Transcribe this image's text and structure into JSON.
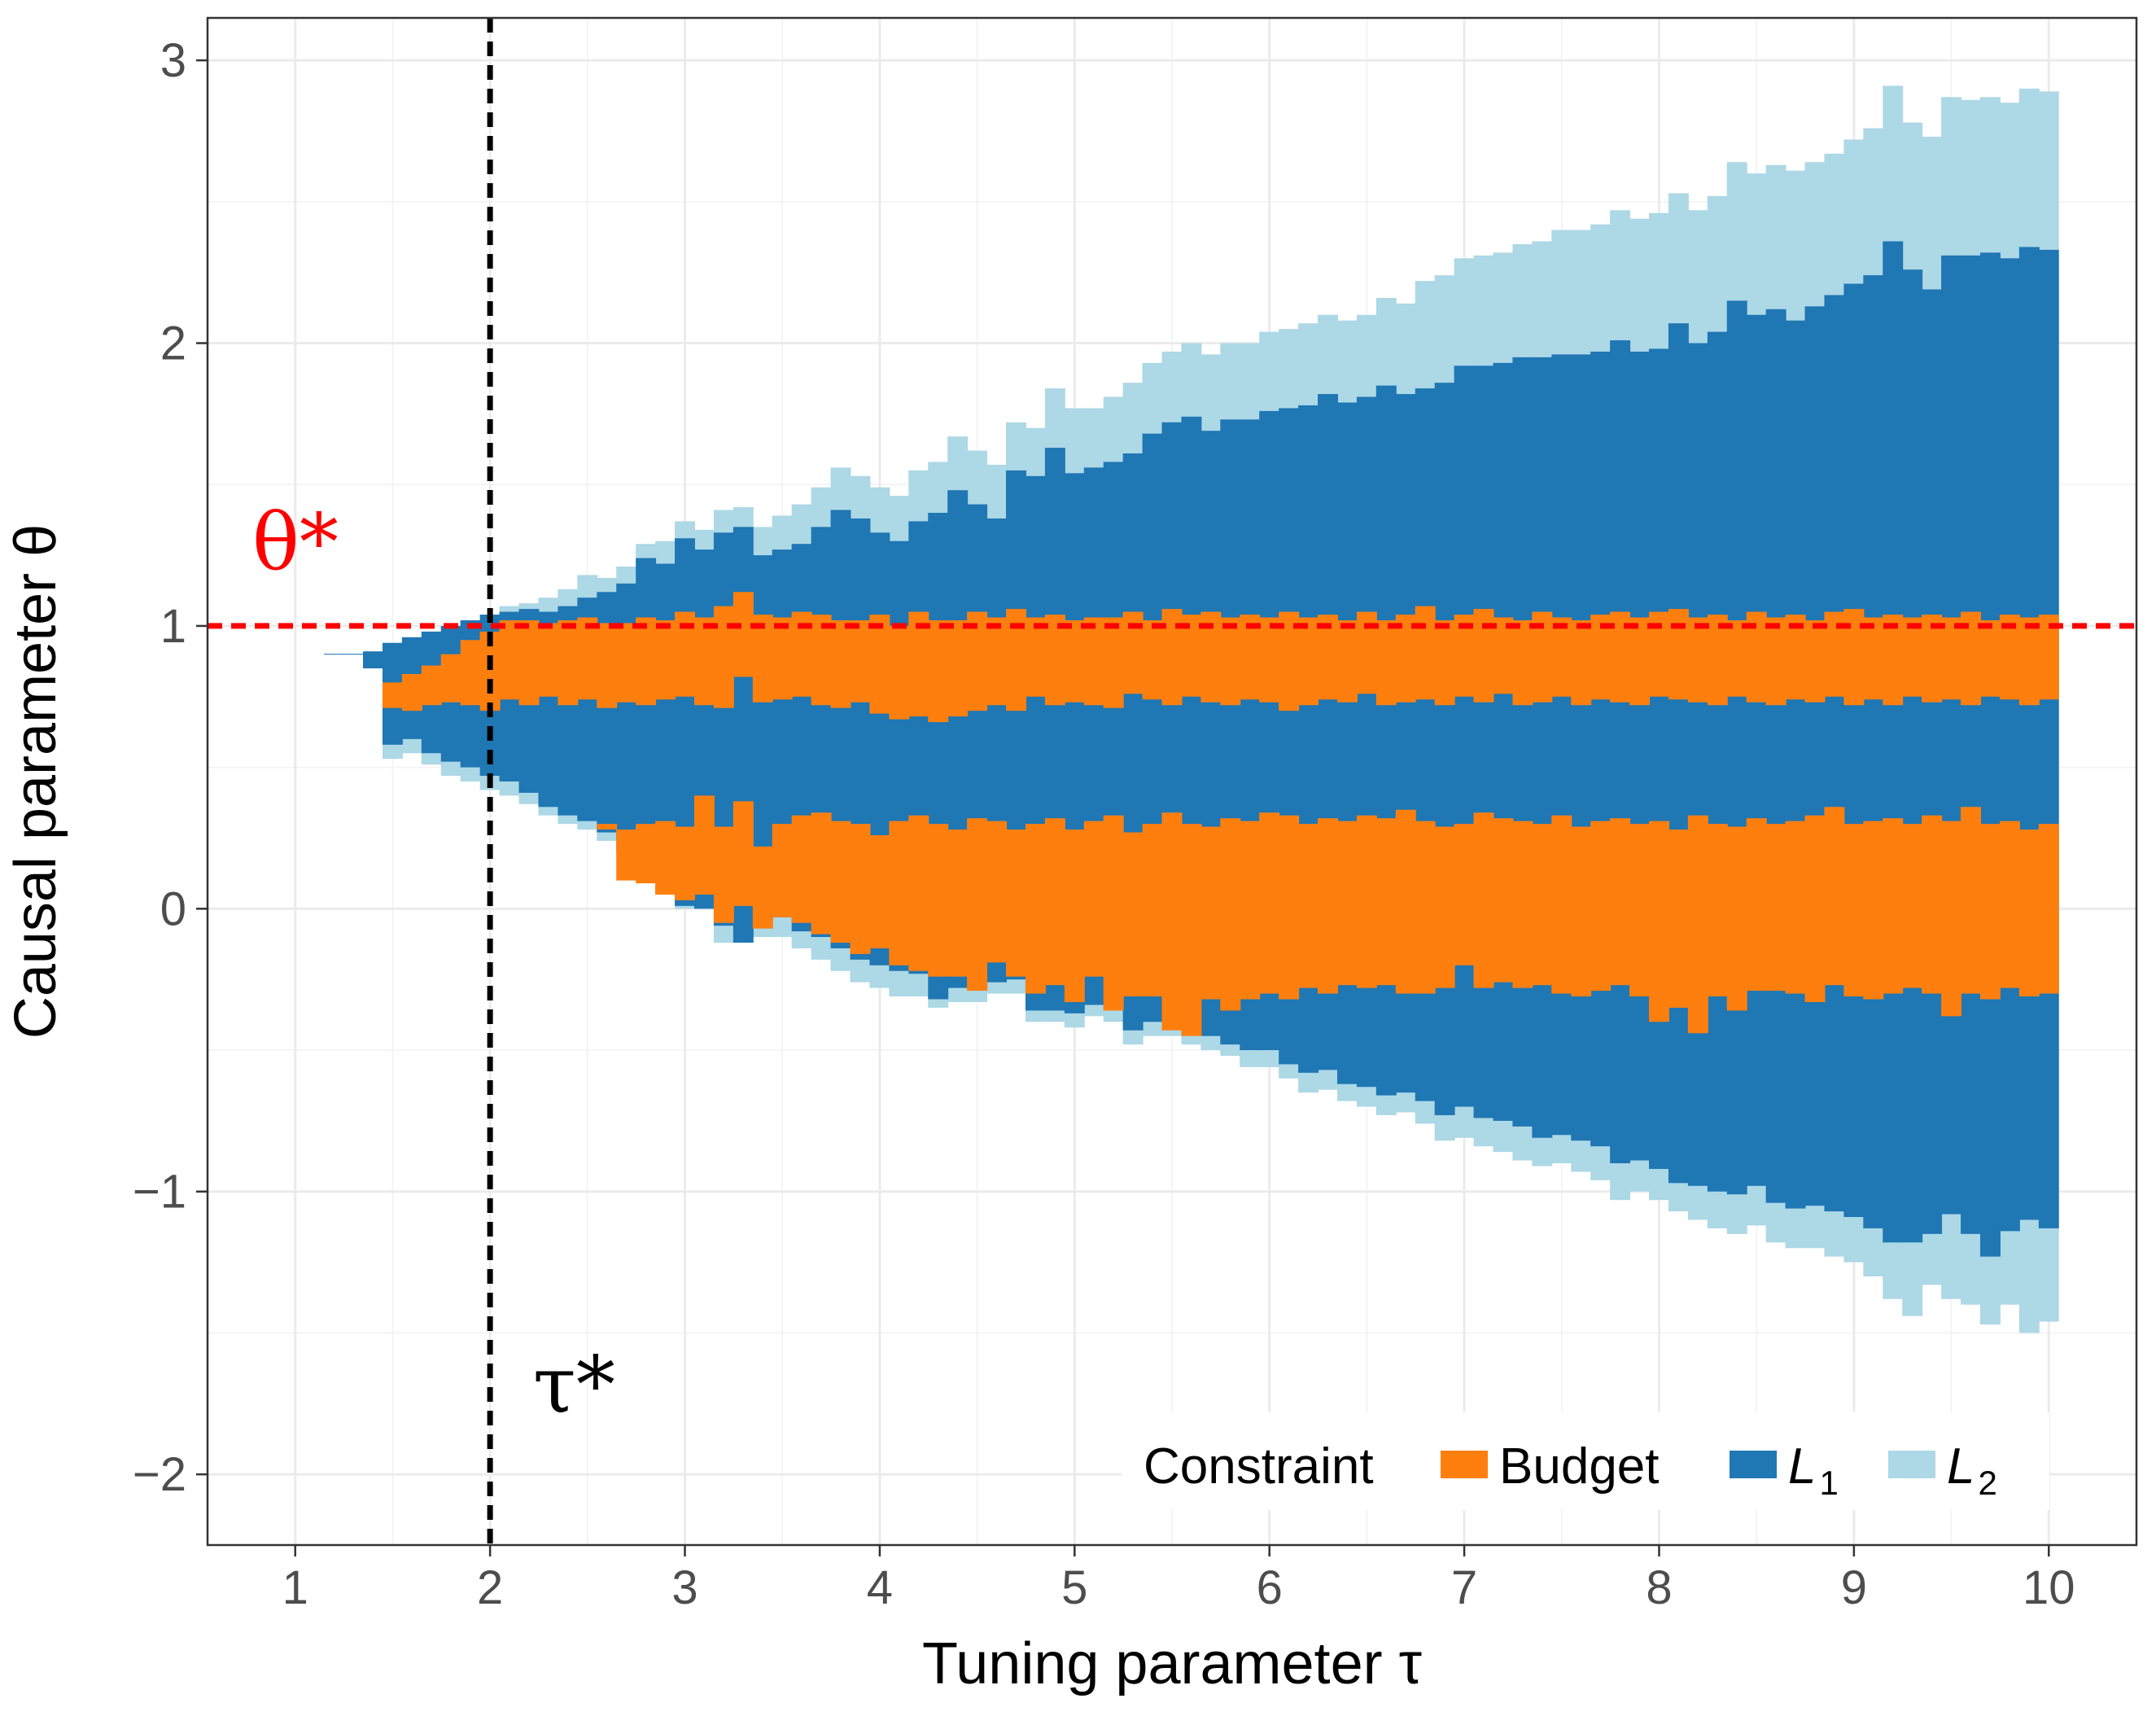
{
  "chart_data": {
    "type": "area",
    "xlabel": "Tuning parameter τ",
    "ylabel": "Causal parameter  θ",
    "xlim": [
      0.55,
      10.45
    ],
    "ylim": [
      -2.25,
      3.15
    ],
    "x_ticks": [
      "1",
      "2",
      "3",
      "4",
      "5",
      "6",
      "7",
      "8",
      "9",
      "10"
    ],
    "y_ticks": [
      "−2",
      "−1",
      "0",
      "1",
      "2",
      "3"
    ],
    "grid": true,
    "legend": {
      "title": "Constraint",
      "position": "bottom-right",
      "entries": [
        {
          "label": "Budget",
          "color": "#ff7f0e"
        },
        {
          "label": "L",
          "subscript": "1",
          "color": "#1f77b4"
        },
        {
          "label": "L",
          "subscript": "2",
          "color": "#add8e6"
        }
      ]
    },
    "annotations": {
      "theta_star": {
        "text": "θ*",
        "value": 1,
        "color": "#ff0000"
      },
      "tau_star": {
        "text": "τ*",
        "value": 2,
        "color": "#000000"
      }
    },
    "series": [
      {
        "name": "L2",
        "color": "#add8e6",
        "x_start": [
          1.15,
          1.25,
          1.35,
          1.45,
          1.55,
          1.65,
          1.75,
          1.85,
          1.95,
          2.05,
          2.15,
          2.25,
          2.35,
          2.45,
          2.55,
          2.65,
          2.75,
          2.85,
          2.95,
          3.05,
          3.15,
          3.25,
          3.35,
          3.45,
          3.55,
          3.65,
          3.75,
          3.85,
          3.95,
          4.05,
          4.15,
          4.25,
          4.35,
          4.45,
          4.55,
          4.65,
          4.75,
          4.85,
          4.95,
          5.05,
          5.15,
          5.25,
          5.35,
          5.45,
          5.55,
          5.65,
          5.75,
          5.85,
          5.95,
          6.05,
          6.15,
          6.25,
          6.35,
          6.45,
          6.55,
          6.65,
          6.75,
          6.85,
          6.95,
          7.05,
          7.15,
          7.25,
          7.35,
          7.45,
          7.55,
          7.65,
          7.75,
          7.85,
          7.95,
          8.05,
          8.15,
          8.25,
          8.35,
          8.45,
          8.55,
          8.65,
          8.75,
          8.85,
          8.95,
          9.05,
          9.15,
          9.25,
          9.35,
          9.45,
          9.55,
          9.65,
          9.75,
          9.85,
          9.95
        ],
        "ymax": [
          0.9,
          0.9,
          0.91,
          0.94,
          0.96,
          0.98,
          1.0,
          1.02,
          1.04,
          1.07,
          1.08,
          1.1,
          1.13,
          1.18,
          1.17,
          1.21,
          1.29,
          1.3,
          1.37,
          1.34,
          1.41,
          1.42,
          1.35,
          1.39,
          1.43,
          1.49,
          1.56,
          1.53,
          1.49,
          1.46,
          1.55,
          1.58,
          1.67,
          1.62,
          1.57,
          1.72,
          1.7,
          1.84,
          1.77,
          1.77,
          1.81,
          1.86,
          1.93,
          1.97,
          2.0,
          1.96,
          2.0,
          2.0,
          2.04,
          2.05,
          2.07,
          2.1,
          2.08,
          2.1,
          2.16,
          2.14,
          2.22,
          2.24,
          2.3,
          2.31,
          2.32,
          2.35,
          2.36,
          2.4,
          2.4,
          2.42,
          2.47,
          2.44,
          2.46,
          2.53,
          2.47,
          2.52,
          2.64,
          2.6,
          2.63,
          2.61,
          2.64,
          2.67,
          2.72,
          2.76,
          2.91,
          2.78,
          2.73,
          2.87,
          2.86,
          2.87,
          2.85,
          2.9,
          2.89
        ],
        "ymin": [
          0.9,
          0.9,
          0.85,
          0.53,
          0.55,
          0.51,
          0.47,
          0.45,
          0.42,
          0.4,
          0.37,
          0.33,
          0.3,
          0.28,
          0.24,
          0.16,
          0.1,
          0.05,
          0.0,
          0.0,
          -0.12,
          -0.04,
          -0.1,
          -0.1,
          -0.14,
          -0.18,
          -0.22,
          -0.26,
          -0.28,
          -0.31,
          -0.31,
          -0.35,
          -0.33,
          -0.33,
          -0.3,
          -0.3,
          -0.4,
          -0.4,
          -0.42,
          -0.38,
          -0.4,
          -0.48,
          -0.45,
          -0.45,
          -0.48,
          -0.5,
          -0.52,
          -0.56,
          -0.56,
          -0.6,
          -0.65,
          -0.64,
          -0.68,
          -0.7,
          -0.73,
          -0.72,
          -0.76,
          -0.82,
          -0.81,
          -0.84,
          -0.86,
          -0.89,
          -0.91,
          -0.9,
          -0.93,
          -0.96,
          -1.03,
          -1.0,
          -1.03,
          -1.07,
          -1.1,
          -1.13,
          -1.15,
          -1.12,
          -1.18,
          -1.2,
          -1.2,
          -1.23,
          -1.25,
          -1.3,
          -1.38,
          -1.44,
          -1.33,
          -1.38,
          -1.4,
          -1.47,
          -1.4,
          -1.5,
          -1.46
        ]
      },
      {
        "name": "L1",
        "color": "#1f77b4",
        "x_start": [
          1.15,
          1.25,
          1.35,
          1.45,
          1.55,
          1.65,
          1.75,
          1.85,
          1.95,
          2.05,
          2.15,
          2.25,
          2.35,
          2.45,
          2.55,
          2.65,
          2.75,
          2.85,
          2.95,
          3.05,
          3.15,
          3.25,
          3.35,
          3.45,
          3.55,
          3.65,
          3.75,
          3.85,
          3.95,
          4.05,
          4.15,
          4.25,
          4.35,
          4.45,
          4.55,
          4.65,
          4.75,
          4.85,
          4.95,
          5.05,
          5.15,
          5.25,
          5.35,
          5.45,
          5.55,
          5.65,
          5.75,
          5.85,
          5.95,
          6.05,
          6.15,
          6.25,
          6.35,
          6.45,
          6.55,
          6.65,
          6.75,
          6.85,
          6.95,
          7.05,
          7.15,
          7.25,
          7.35,
          7.45,
          7.55,
          7.65,
          7.75,
          7.85,
          7.95,
          8.05,
          8.15,
          8.25,
          8.35,
          8.45,
          8.55,
          8.65,
          8.75,
          8.85,
          8.95,
          9.05,
          9.15,
          9.25,
          9.35,
          9.45,
          9.55,
          9.65,
          9.75,
          9.85,
          9.95
        ],
        "ymax": [
          0.9,
          0.9,
          0.91,
          0.94,
          0.96,
          0.98,
          1.0,
          1.02,
          1.04,
          1.05,
          1.06,
          1.05,
          1.07,
          1.1,
          1.12,
          1.15,
          1.24,
          1.22,
          1.31,
          1.27,
          1.33,
          1.35,
          1.25,
          1.27,
          1.29,
          1.35,
          1.41,
          1.38,
          1.33,
          1.3,
          1.37,
          1.4,
          1.48,
          1.43,
          1.38,
          1.55,
          1.53,
          1.63,
          1.54,
          1.56,
          1.58,
          1.61,
          1.68,
          1.72,
          1.74,
          1.69,
          1.73,
          1.73,
          1.76,
          1.77,
          1.78,
          1.82,
          1.79,
          1.81,
          1.85,
          1.82,
          1.84,
          1.86,
          1.92,
          1.92,
          1.93,
          1.95,
          1.95,
          1.96,
          1.96,
          1.97,
          2.01,
          1.97,
          1.98,
          2.07,
          2.0,
          2.04,
          2.15,
          2.1,
          2.12,
          2.08,
          2.13,
          2.17,
          2.21,
          2.24,
          2.36,
          2.26,
          2.19,
          2.31,
          2.31,
          2.32,
          2.3,
          2.34,
          2.33
        ],
        "ymin": [
          0.9,
          0.9,
          0.85,
          0.58,
          0.6,
          0.55,
          0.52,
          0.5,
          0.47,
          0.45,
          0.41,
          0.36,
          0.33,
          0.31,
          0.27,
          0.2,
          0.15,
          0.1,
          0.01,
          0.0,
          -0.06,
          -0.12,
          -0.04,
          -0.03,
          -0.08,
          -0.1,
          -0.14,
          -0.18,
          -0.2,
          -0.22,
          -0.23,
          -0.32,
          -0.28,
          -0.28,
          -0.26,
          -0.25,
          -0.36,
          -0.36,
          -0.37,
          -0.34,
          -0.35,
          -0.43,
          -0.4,
          -0.37,
          -0.43,
          -0.45,
          -0.48,
          -0.5,
          -0.5,
          -0.55,
          -0.58,
          -0.57,
          -0.62,
          -0.63,
          -0.66,
          -0.65,
          -0.68,
          -0.73,
          -0.7,
          -0.74,
          -0.75,
          -0.77,
          -0.81,
          -0.8,
          -0.82,
          -0.84,
          -0.9,
          -0.89,
          -0.92,
          -0.97,
          -0.98,
          -1.0,
          -1.01,
          -0.98,
          -1.04,
          -1.06,
          -1.05,
          -1.07,
          -1.09,
          -1.13,
          -1.18,
          -1.18,
          -1.15,
          -1.08,
          -1.15,
          -1.23,
          -1.14,
          -1.1,
          -1.13
        ]
      },
      {
        "name": "Budget",
        "color": "#ff7f0e",
        "x_start": [
          1.45,
          1.55,
          1.65,
          1.75,
          1.85,
          1.95,
          2.05,
          2.15,
          2.25,
          2.35,
          2.45,
          2.55,
          2.65,
          2.75,
          2.85,
          2.95,
          3.05,
          3.15,
          3.25,
          3.35,
          3.45,
          3.55,
          3.65,
          3.75,
          3.85,
          3.95,
          4.05,
          4.15,
          4.25,
          4.35,
          4.45,
          4.55,
          4.65,
          4.75,
          4.85,
          4.95,
          5.05,
          5.15,
          5.25,
          5.35,
          5.45,
          5.55,
          5.65,
          5.75,
          5.85,
          5.95,
          6.05,
          6.15,
          6.25,
          6.35,
          6.45,
          6.55,
          6.65,
          6.75,
          6.85,
          6.95,
          7.05,
          7.15,
          7.25,
          7.35,
          7.45,
          7.55,
          7.65,
          7.75,
          7.85,
          7.95,
          8.05,
          8.15,
          8.25,
          8.35,
          8.45,
          8.55,
          8.65,
          8.75,
          8.85,
          8.95,
          9.05,
          9.15,
          9.25,
          9.35,
          9.45,
          9.55,
          9.65,
          9.75,
          9.85,
          9.95
        ],
        "bands": [
          {
            "ymax": [
              0.8,
              0.83,
              0.86,
              0.9,
              0.95,
              0.98,
              1.02,
              1.02,
              1.01,
              1.02,
              1.03,
              1.01,
              1.01,
              1.03,
              1.02,
              1.05,
              1.03,
              1.07,
              1.12,
              1.04,
              1.03,
              1.05,
              1.04,
              1.02,
              1.02,
              1.04,
              1.0,
              1.05,
              1.02,
              1.02,
              1.05,
              1.03,
              1.06,
              1.03,
              1.04,
              1.02,
              1.03,
              1.03,
              1.05,
              1.02,
              1.06,
              1.04,
              1.05,
              1.03,
              1.04,
              1.03,
              1.05,
              1.03,
              1.04,
              1.02,
              1.05,
              1.02,
              1.04,
              1.07,
              1.02,
              1.04,
              1.06,
              1.03,
              1.02,
              1.05,
              1.03,
              1.02,
              1.04,
              1.05,
              1.03,
              1.05,
              1.06,
              1.03,
              1.04,
              1.02,
              1.05,
              1.03,
              1.04,
              1.02,
              1.05,
              1.06,
              1.03,
              1.04,
              1.03,
              1.04,
              1.03,
              1.05,
              1.02,
              1.04,
              1.03,
              1.04
            ],
            "ymin": [
              0.71,
              0.7,
              0.72,
              0.73,
              0.72,
              0.7,
              0.74,
              0.72,
              0.75,
              0.72,
              0.74,
              0.71,
              0.73,
              0.72,
              0.74,
              0.75,
              0.72,
              0.71,
              0.82,
              0.73,
              0.74,
              0.75,
              0.72,
              0.71,
              0.73,
              0.69,
              0.67,
              0.68,
              0.66,
              0.68,
              0.7,
              0.72,
              0.7,
              0.75,
              0.72,
              0.73,
              0.72,
              0.71,
              0.76,
              0.74,
              0.72,
              0.75,
              0.73,
              0.72,
              0.74,
              0.73,
              0.7,
              0.72,
              0.74,
              0.73,
              0.76,
              0.72,
              0.73,
              0.74,
              0.72,
              0.75,
              0.73,
              0.76,
              0.72,
              0.73,
              0.75,
              0.72,
              0.74,
              0.73,
              0.72,
              0.75,
              0.74,
              0.73,
              0.72,
              0.75,
              0.73,
              0.72,
              0.74,
              0.73,
              0.75,
              0.72,
              0.74,
              0.72,
              0.75,
              0.73,
              0.74,
              0.72,
              0.75,
              0.74,
              0.72,
              0.74
            ]
          },
          {
            "x_first": 2.55,
            "ymax": [
              0.3,
              0.28,
              0.3,
              0.31,
              0.29,
              0.4,
              0.29,
              0.38,
              0.22,
              0.3,
              0.33,
              0.34,
              0.31,
              0.3,
              0.26,
              0.31,
              0.33,
              0.3,
              0.28,
              0.32,
              0.31,
              0.28,
              0.3,
              0.32,
              0.28,
              0.31,
              0.33,
              0.27,
              0.3,
              0.34,
              0.3,
              0.29,
              0.32,
              0.31,
              0.34,
              0.33,
              0.3,
              0.32,
              0.31,
              0.33,
              0.32,
              0.35,
              0.31,
              0.29,
              0.3,
              0.34,
              0.32,
              0.31,
              0.3,
              0.33,
              0.29,
              0.31,
              0.32,
              0.3,
              0.31,
              0.28,
              0.33,
              0.3,
              0.29,
              0.32,
              0.3,
              0.31,
              0.33,
              0.36,
              0.3,
              0.31,
              0.32,
              0.3,
              0.33,
              0.31,
              0.36,
              0.3,
              0.31,
              0.28,
              0.3
            ],
            "ymin": [
              0.28,
              0.1,
              0.09,
              0.05,
              0.03,
              0.05,
              -0.05,
              0.01,
              -0.07,
              -0.03,
              -0.05,
              -0.09,
              -0.12,
              -0.16,
              -0.14,
              -0.2,
              -0.22,
              -0.24,
              -0.24,
              -0.29,
              -0.19,
              -0.24,
              -0.3,
              -0.27,
              -0.33,
              -0.24,
              -0.36,
              -0.31,
              -0.31,
              -0.43,
              -0.45,
              -0.32,
              -0.36,
              -0.32,
              -0.3,
              -0.32,
              -0.28,
              -0.3,
              -0.27,
              -0.28,
              -0.27,
              -0.3,
              -0.3,
              -0.28,
              -0.2,
              -0.28,
              -0.26,
              -0.28,
              -0.27,
              -0.3,
              -0.31,
              -0.29,
              -0.27,
              -0.31,
              -0.4,
              -0.35,
              -0.44,
              -0.31,
              -0.36,
              -0.29,
              -0.29,
              -0.3,
              -0.33,
              -0.27,
              -0.31,
              -0.32,
              -0.3,
              -0.28,
              -0.3,
              -0.38,
              -0.3,
              -0.32,
              -0.28,
              -0.31,
              -0.3
            ]
          }
        ]
      }
    ]
  }
}
